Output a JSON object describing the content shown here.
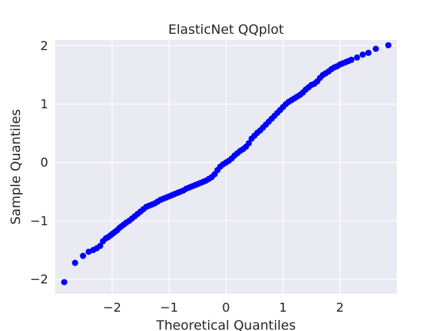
{
  "chart_data": {
    "type": "scatter",
    "title": "ElasticNet QQplot",
    "xlabel": "Theoretical Quantiles",
    "ylabel": "Sample Quantiles",
    "xlim": [
      -3.0,
      3.0
    ],
    "ylim": [
      -2.25,
      2.1
    ],
    "xticks": [
      -2,
      -1,
      0,
      1,
      2
    ],
    "xtick_labels": [
      "−2",
      "−1",
      "0",
      "1",
      "2"
    ],
    "yticks": [
      -2,
      -1,
      0,
      1,
      2
    ],
    "ytick_labels": [
      "−2",
      "−1",
      "0",
      "1",
      "2"
    ],
    "grid": true,
    "background": "#eaeaf2",
    "marker_color": "#0000ff",
    "series": [
      {
        "x": [
          -2.84,
          -2.65,
          -2.51,
          -2.41,
          -2.33,
          -2.27,
          -2.21,
          -2.16,
          -2.11,
          -2.07,
          -2.03,
          -1.99,
          -1.95,
          -1.91,
          -1.87,
          -1.83,
          -1.79,
          -1.75,
          -1.7,
          -1.65,
          -1.6,
          -1.55,
          -1.5,
          -1.45,
          -1.4,
          -1.35,
          -1.3,
          -1.25,
          -1.2,
          -1.15,
          -1.1,
          -1.05,
          -1.0,
          -0.95,
          -0.9,
          -0.85,
          -0.8,
          -0.75,
          -0.7,
          -0.65,
          -0.6,
          -0.55,
          -0.5,
          -0.45,
          -0.4,
          -0.35,
          -0.3,
          -0.25,
          -0.2,
          -0.15,
          -0.1,
          -0.05,
          0.0,
          0.05,
          0.1,
          0.15,
          0.2,
          0.25,
          0.3,
          0.35,
          0.4,
          0.45,
          0.5,
          0.55,
          0.6,
          0.65,
          0.7,
          0.75,
          0.8,
          0.85,
          0.9,
          0.95,
          1.0,
          1.05,
          1.1,
          1.15,
          1.2,
          1.25,
          1.3,
          1.35,
          1.4,
          1.45,
          1.5,
          1.55,
          1.6,
          1.65,
          1.7,
          1.75,
          1.8,
          1.85,
          1.9,
          1.95,
          2.0,
          2.05,
          2.1,
          2.15,
          2.2,
          2.3,
          2.4,
          2.5,
          2.63,
          2.85
        ],
        "y": [
          -2.05,
          -1.72,
          -1.6,
          -1.53,
          -1.5,
          -1.47,
          -1.43,
          -1.35,
          -1.3,
          -1.28,
          -1.25,
          -1.22,
          -1.19,
          -1.16,
          -1.12,
          -1.09,
          -1.06,
          -1.03,
          -1.0,
          -0.96,
          -0.92,
          -0.88,
          -0.84,
          -0.8,
          -0.76,
          -0.74,
          -0.72,
          -0.7,
          -0.67,
          -0.64,
          -0.62,
          -0.6,
          -0.58,
          -0.56,
          -0.54,
          -0.52,
          -0.5,
          -0.48,
          -0.45,
          -0.43,
          -0.41,
          -0.39,
          -0.37,
          -0.35,
          -0.33,
          -0.31,
          -0.28,
          -0.25,
          -0.2,
          -0.13,
          -0.07,
          -0.03,
          0.0,
          0.03,
          0.07,
          0.12,
          0.16,
          0.2,
          0.23,
          0.27,
          0.33,
          0.41,
          0.46,
          0.51,
          0.55,
          0.6,
          0.65,
          0.7,
          0.75,
          0.8,
          0.85,
          0.9,
          0.95,
          1.0,
          1.04,
          1.07,
          1.1,
          1.13,
          1.16,
          1.2,
          1.25,
          1.29,
          1.33,
          1.35,
          1.39,
          1.45,
          1.5,
          1.53,
          1.56,
          1.6,
          1.63,
          1.65,
          1.68,
          1.7,
          1.72,
          1.74,
          1.76,
          1.8,
          1.85,
          1.88,
          1.95,
          2.01
        ]
      }
    ]
  }
}
